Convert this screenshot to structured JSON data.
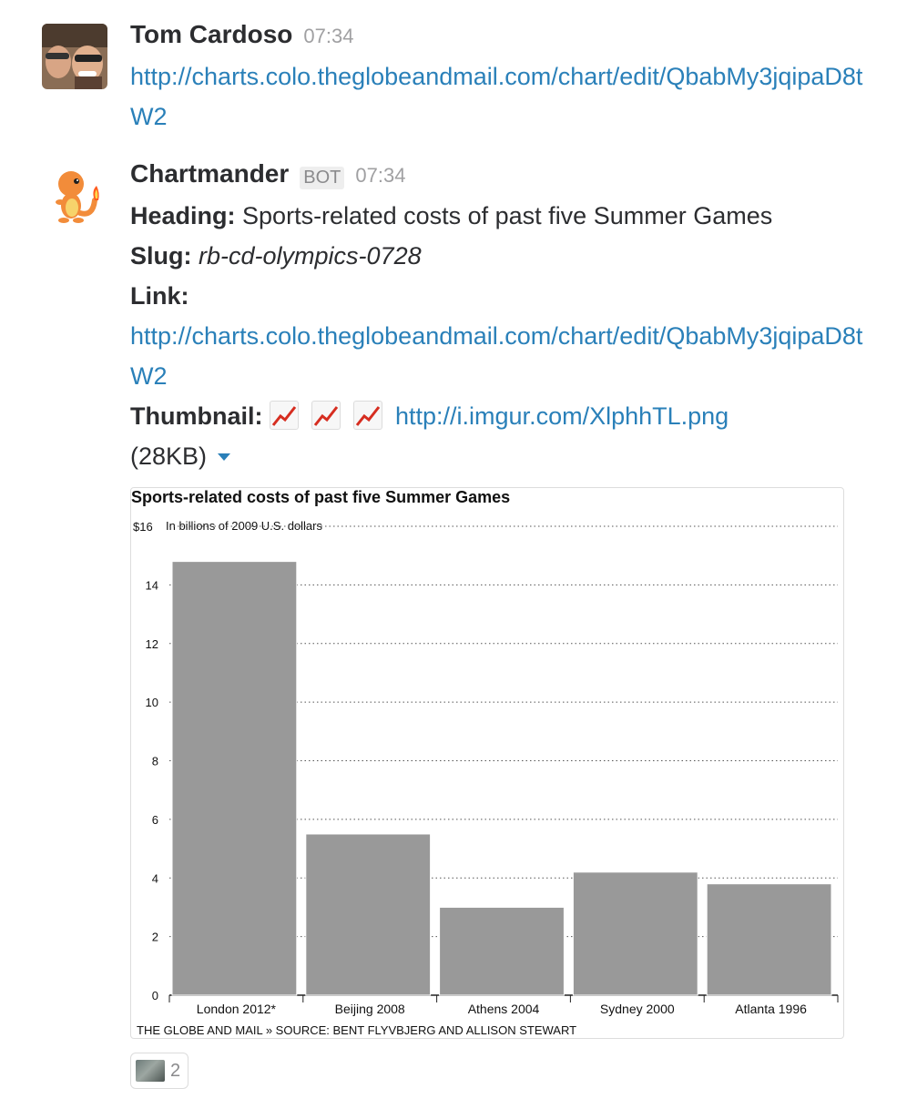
{
  "messages": [
    {
      "author": "Tom Cardoso",
      "timestamp": "07:34",
      "link": "http://charts.colo.theglobeandmail.com/chart/edit/QbabMy3jqipaD8tW2"
    },
    {
      "author": "Chartmander",
      "badge": "BOT",
      "timestamp": "07:34",
      "heading_label": "Heading:",
      "heading_value": "Sports-related costs of past five Summer Games",
      "slug_label": "Slug:",
      "slug_value": "rb-cd-olympics-0728",
      "link_label": "Link:",
      "link": "http://charts.colo.theglobeandmail.com/chart/edit/QbabMy3jqipaD8tW2",
      "thumbnail_label": "Thumbnail:",
      "thumbnail_icons": [
        "chart-increasing-emoji",
        "chart-increasing-emoji",
        "chart-increasing-emoji"
      ],
      "thumbnail_link": "http://i.imgur.com/XlphhTL.png",
      "file_size": "(28KB)"
    }
  ],
  "reaction": {
    "count": "2"
  },
  "colors": {
    "link": "#2a80b9",
    "bar": "#999999",
    "text": "#2c2d30",
    "muted": "#a0a0a2"
  },
  "chart_data": {
    "type": "bar",
    "title": "Sports-related costs of past five Summer Games",
    "subtitle": "In billions of 2009 U.S. dollars",
    "categories": [
      "London 2012*",
      "Beijing 2008",
      "Athens 2004",
      "Sydney 2000",
      "Atlanta 1996"
    ],
    "values": [
      14.8,
      5.5,
      3.0,
      4.2,
      3.8
    ],
    "ylim": [
      0,
      16
    ],
    "yticks": [
      "0",
      "2",
      "4",
      "6",
      "8",
      "10",
      "12",
      "14",
      "$16"
    ],
    "grid": true,
    "source": "THE GLOBE AND MAIL » SOURCE: BENT FLYVBJERG AND ALLISON STEWART"
  }
}
